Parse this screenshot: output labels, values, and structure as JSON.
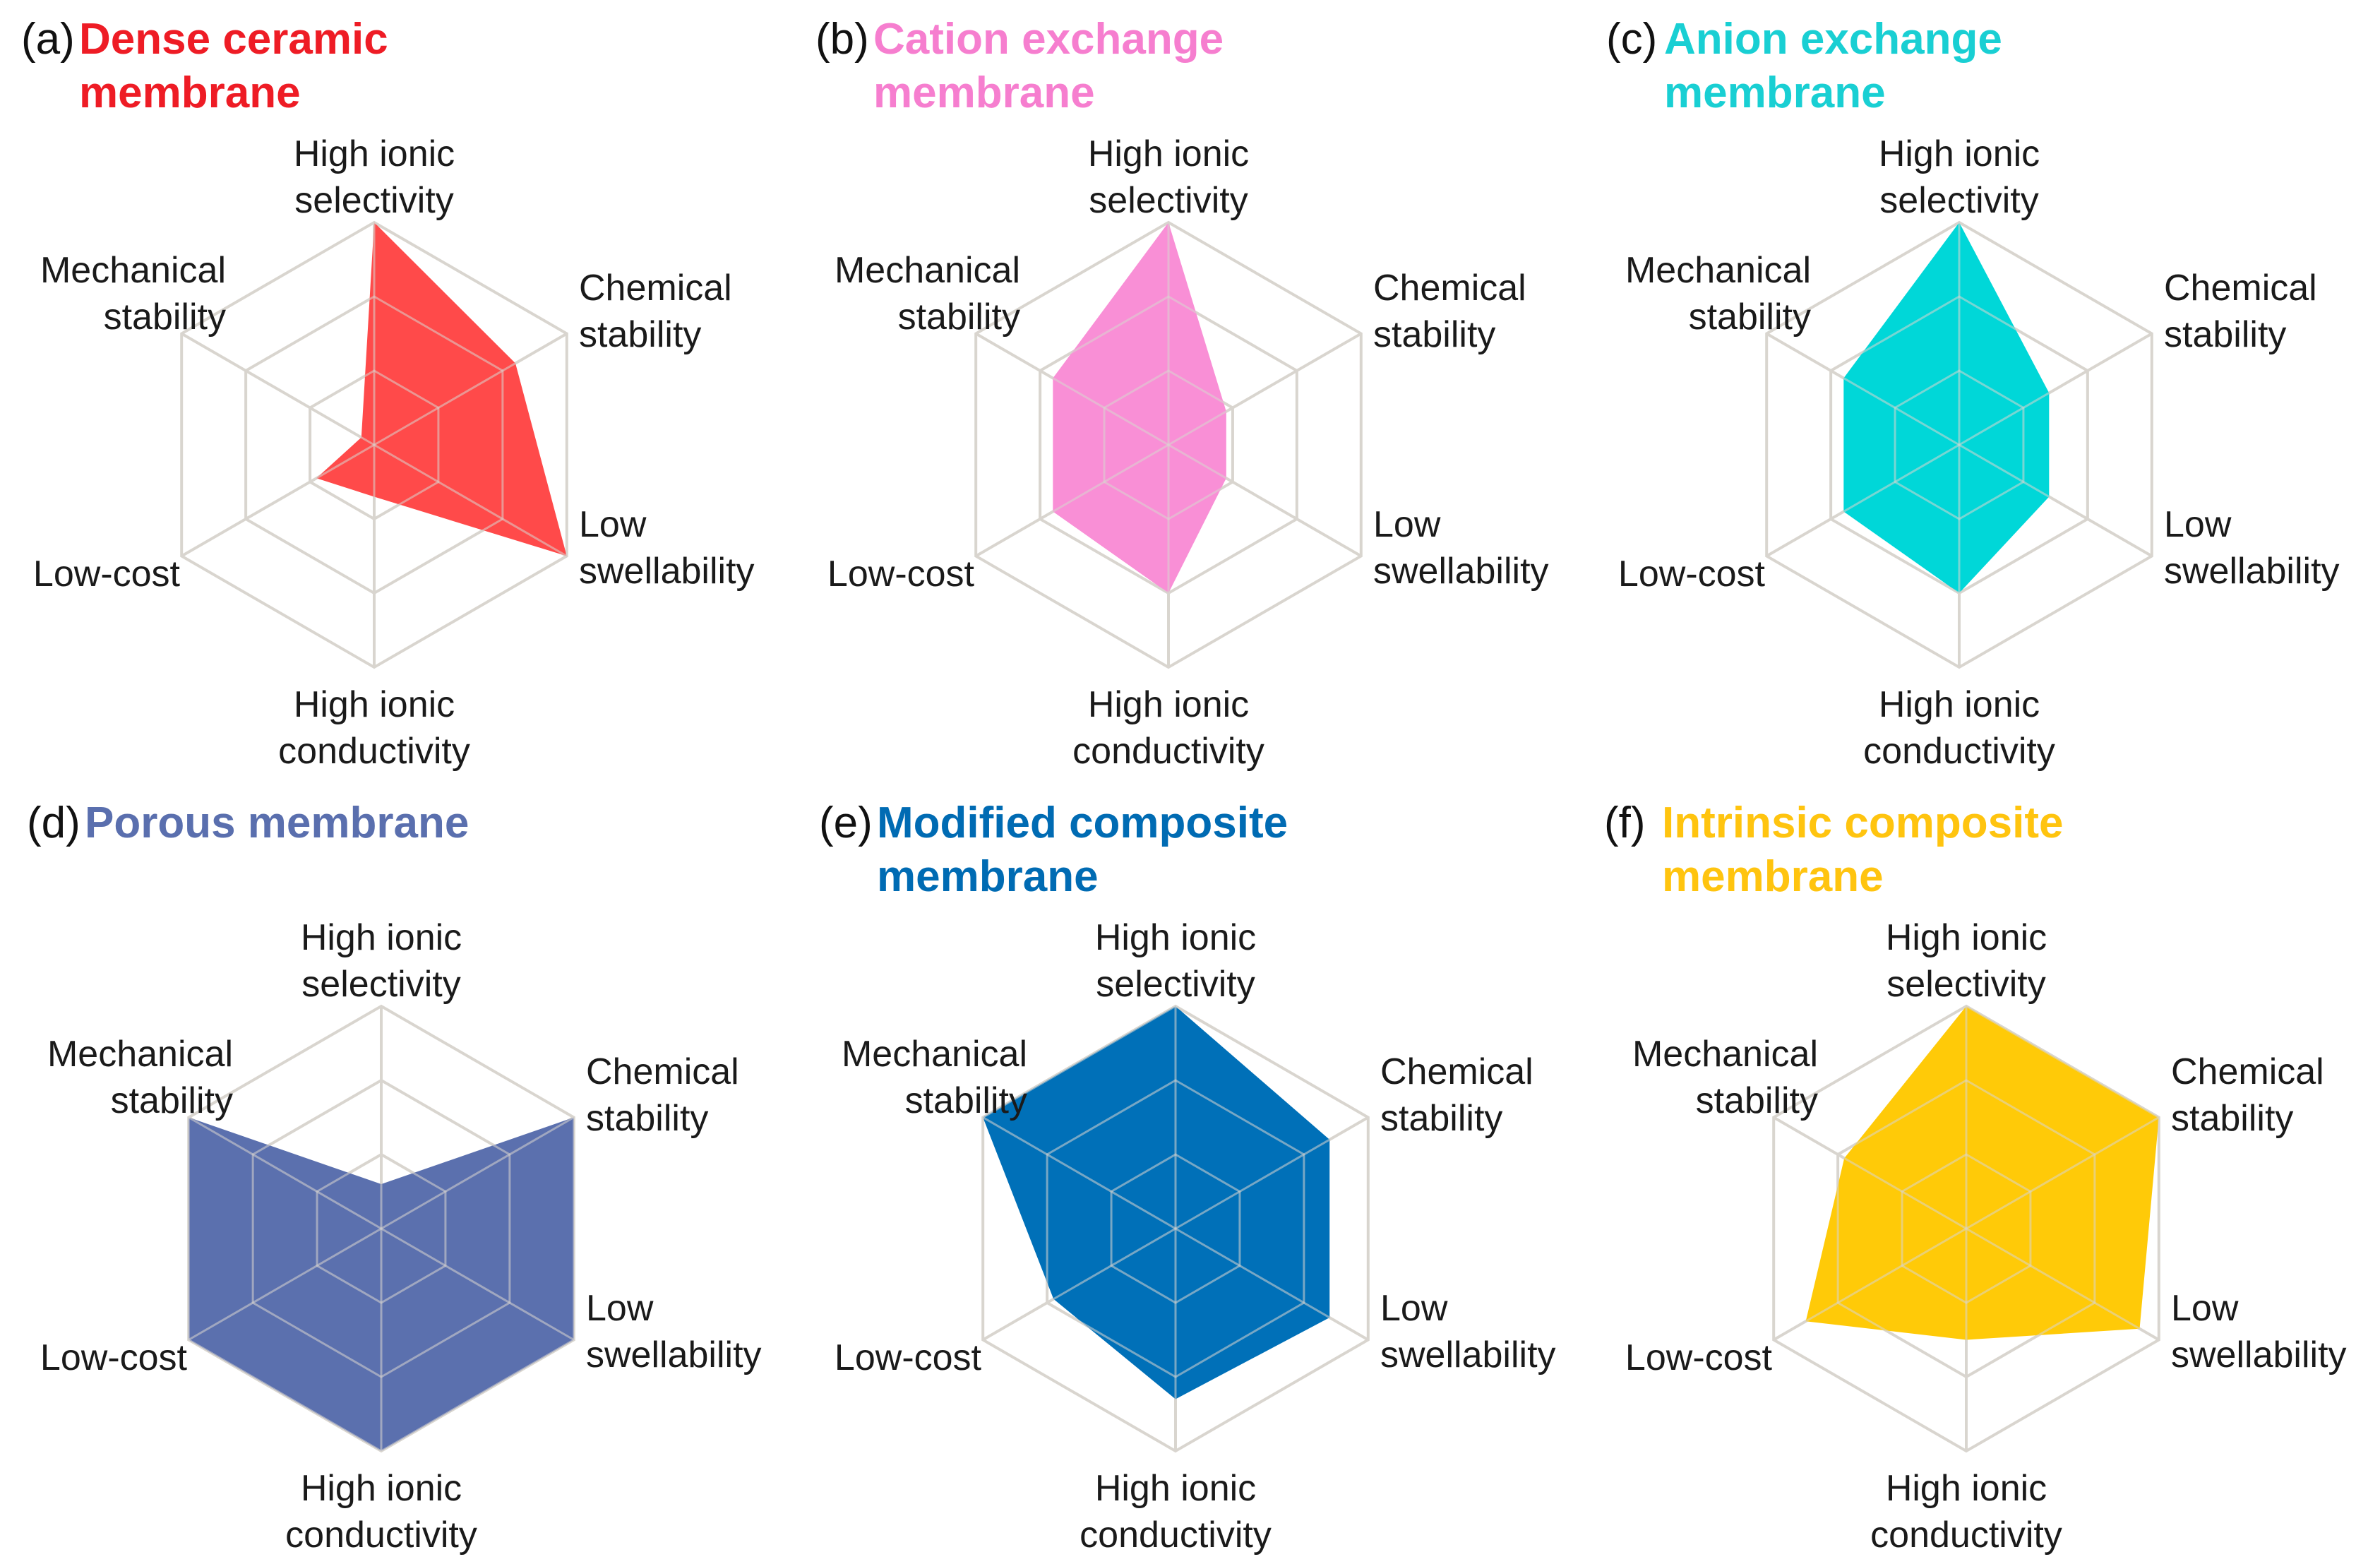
{
  "axes": [
    "High ionic selectivity",
    "Chemical stability",
    "Low swellability",
    "High ionic conductivity",
    "Low-cost",
    "Mechanical stability"
  ],
  "grid_levels": 3,
  "chart_data": [
    {
      "type": "radar",
      "label": "(a)",
      "title": "Dense ceramic membrane",
      "title_color": "#ee1c25",
      "fill_color": "#ff4a4a",
      "range": [
        0,
        3
      ],
      "values": [
        3,
        2.2,
        3,
        0.7,
        0.9,
        0.2
      ]
    },
    {
      "type": "radar",
      "label": "(b)",
      "title": "Cation exchange membrane",
      "title_color": "#f67ecf",
      "fill_color": "#f98fd6",
      "range": [
        0,
        3
      ],
      "values": [
        3,
        0.9,
        0.9,
        2,
        1.8,
        1.8
      ]
    },
    {
      "type": "radar",
      "label": "(c)",
      "title": "Anion exchange membrane",
      "title_color": "#19cfd3",
      "fill_color": "#00d7d8",
      "range": [
        0,
        3
      ],
      "values": [
        3,
        1.4,
        1.4,
        2,
        1.8,
        1.8
      ]
    },
    {
      "type": "radar",
      "label": "(d)",
      "title": "Porous membrane",
      "title_color": "#5a6fae",
      "fill_color": "#5b70ae",
      "range": [
        0,
        3
      ],
      "values": [
        0.6,
        3,
        3,
        3,
        3,
        3
      ]
    },
    {
      "type": "radar",
      "label": "(e)",
      "title": "Modified composite membrane",
      "title_color": "#006bb3",
      "fill_color": "#0070b8",
      "range": [
        0,
        3
      ],
      "values": [
        3,
        2.4,
        2.4,
        2.3,
        1.9,
        3
      ]
    },
    {
      "type": "radar",
      "label": "(f)",
      "title": "Intrinsic composite membrane",
      "title_color": "#ffc40f",
      "fill_color": "#ffca08",
      "range": [
        0,
        3
      ],
      "values": [
        3,
        3,
        2.7,
        1.5,
        2.5,
        1.9
      ]
    }
  ]
}
